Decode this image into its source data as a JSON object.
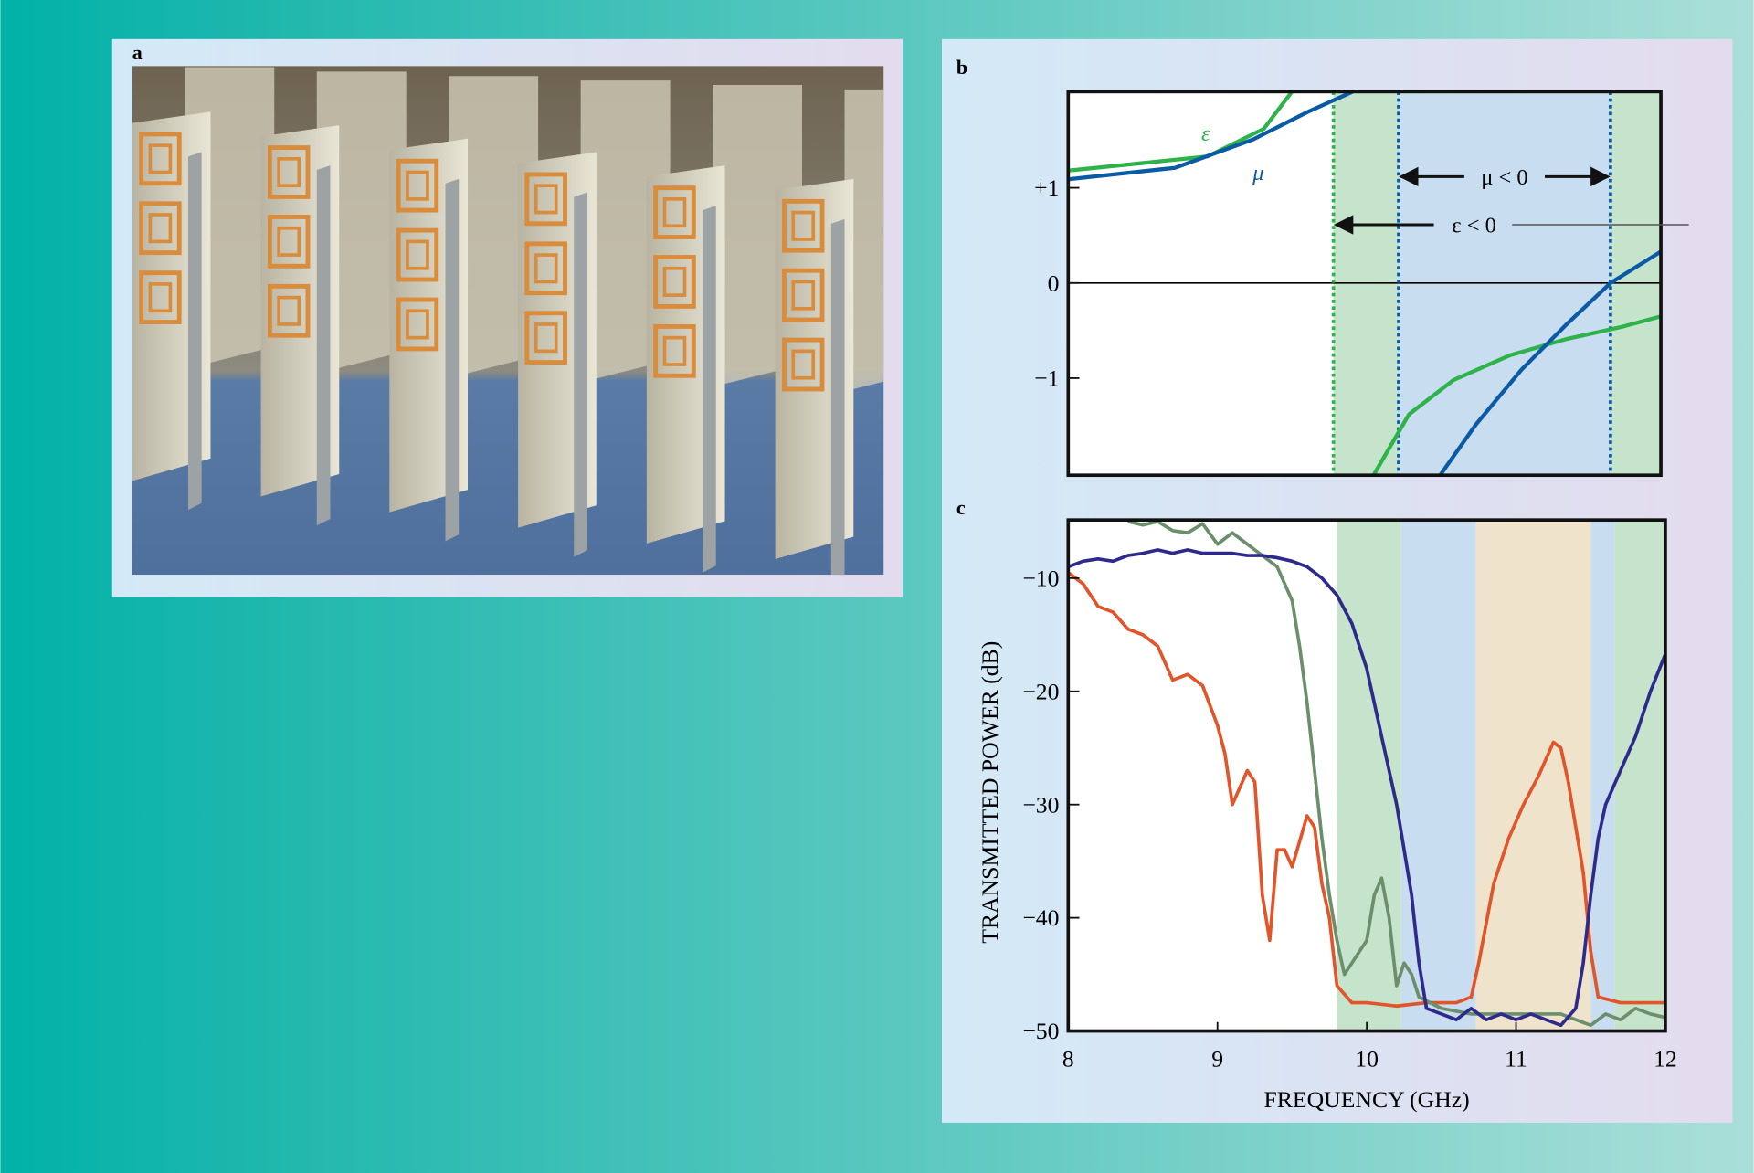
{
  "photo": {
    "label": "a"
  },
  "chart_data": [
    {
      "type": "line",
      "label": "b",
      "xlim": [
        8,
        12
      ],
      "ylim": [
        -2.02,
        2.01
      ],
      "yticks": [
        {
          "value": 1,
          "label": "+1"
        },
        0,
        {
          "value": -1,
          "label": "−1"
        }
      ],
      "hlines": [
        0
      ],
      "regions": [
        {
          "x": [
            9.79,
            12
          ],
          "color": "#c6e4cc"
        },
        {
          "x": [
            10.23,
            11.66
          ],
          "color": "#c8ddef"
        }
      ],
      "vlines": [
        {
          "x": 9.79,
          "color": "#2db34a"
        },
        {
          "x": 10.23,
          "color": "#0b5aa6"
        },
        {
          "x": 11.66,
          "color": "#0b5aa6"
        }
      ],
      "annotations": [
        "μ < 0",
        "ε < 0"
      ],
      "series": [
        {
          "name": "ε",
          "color": "#2db34a",
          "x": [
            8.0,
            8.94,
            9.32,
            9.51,
            null,
            10.06,
            10.3,
            10.6,
            10.98,
            11.36,
            11.74,
            12.0
          ],
          "values": [
            1.18,
            1.33,
            1.62,
            2.01,
            null,
            -2.02,
            -1.38,
            -1.02,
            -0.76,
            -0.59,
            -0.46,
            -0.35
          ]
        },
        {
          "name": "μ",
          "color": "#0b5aa6",
          "x": [
            8.0,
            8.72,
            9.25,
            9.62,
            9.92,
            null,
            10.51,
            10.75,
            11.06,
            11.36,
            11.66,
            12.0
          ],
          "values": [
            1.09,
            1.21,
            1.51,
            1.8,
            2.01,
            null,
            -2.02,
            -1.49,
            -0.91,
            -0.44,
            0,
            0.33
          ]
        }
      ]
    },
    {
      "type": "line",
      "label": "c",
      "xlabel": "FREQUENCY (GHz)",
      "ylabel": "TRANSMITTED POWER (dB)",
      "xlim": [
        8,
        12
      ],
      "ylim": [
        -50,
        -4.86
      ],
      "xticks": [
        8,
        9,
        10,
        11,
        12
      ],
      "yticks": [
        {
          "value": -10,
          "label": "−10"
        },
        {
          "value": -20,
          "label": "−20"
        },
        {
          "value": -30,
          "label": "−30"
        },
        {
          "value": -40,
          "label": "−40"
        },
        {
          "value": -50,
          "label": "−50"
        }
      ],
      "regions": [
        {
          "x": [
            9.8,
            10.23
          ],
          "color": "#c6e4cc"
        },
        {
          "x": [
            10.23,
            10.73
          ],
          "color": "#c8ddef"
        },
        {
          "x": [
            10.73,
            11.5
          ],
          "color": "#efe3cc"
        },
        {
          "x": [
            11.5,
            11.66
          ],
          "color": "#c8ddef"
        },
        {
          "x": [
            11.66,
            12
          ],
          "color": "#c6e4cc"
        }
      ],
      "series": [
        {
          "color": "#e0552a",
          "x": [
            8.0,
            8.1,
            8.2,
            8.3,
            8.4,
            8.5,
            8.6,
            8.7,
            8.8,
            8.9,
            9.0,
            9.05,
            9.1,
            9.2,
            9.25,
            9.3,
            9.35,
            9.4,
            9.45,
            9.5,
            9.6,
            9.65,
            9.7,
            9.75,
            9.8,
            9.9,
            10.0,
            10.2,
            10.4,
            10.6,
            10.7,
            10.75,
            10.85,
            10.95,
            11.05,
            11.15,
            11.2,
            11.25,
            11.3,
            11.35,
            11.45,
            11.5,
            11.55,
            11.7,
            11.9,
            12.0
          ],
          "values": [
            -9.5,
            -10.5,
            -12.5,
            -13,
            -14.5,
            -15,
            -16,
            -19,
            -18.5,
            -19.5,
            -23,
            -25.5,
            -30,
            -27,
            -28,
            -38,
            -42,
            -34,
            -34,
            -35.5,
            -31,
            -32,
            -37,
            -40,
            -46,
            -47.5,
            -47.5,
            -47.8,
            -47.5,
            -47.5,
            -47,
            -44,
            -37,
            -33,
            -30,
            -27.5,
            -26,
            -24.5,
            -25,
            -28,
            -36,
            -43,
            -47,
            -47.5,
            -47.5,
            -47.5
          ]
        },
        {
          "color": "#6b8f6b",
          "x": [
            8.4,
            8.5,
            8.6,
            8.7,
            8.8,
            8.9,
            9.0,
            9.1,
            9.2,
            9.3,
            9.4,
            9.5,
            9.55,
            9.6,
            9.65,
            9.7,
            9.75,
            9.8,
            9.85,
            9.9,
            9.95,
            10.0,
            10.05,
            10.1,
            10.15,
            10.2,
            10.25,
            10.3,
            10.35,
            10.5,
            10.7,
            11.0,
            11.3,
            11.4,
            11.5,
            11.6,
            11.7,
            11.8,
            11.9,
            12.0
          ],
          "values": [
            -5,
            -5.3,
            -5,
            -5.8,
            -6,
            -5.2,
            -7,
            -6,
            -7,
            -8,
            -9,
            -12,
            -16,
            -21,
            -27,
            -33,
            -38,
            -42,
            -45,
            -44,
            -43,
            -42,
            -38,
            -36.5,
            -40,
            -46,
            -44,
            -45,
            -47,
            -48,
            -48.5,
            -48.5,
            -48.5,
            -49,
            -49.5,
            -48.5,
            -49,
            -48,
            -48.5,
            -48.8
          ]
        },
        {
          "color": "#2e2a8c",
          "x": [
            8.0,
            8.1,
            8.2,
            8.3,
            8.4,
            8.5,
            8.6,
            8.7,
            8.8,
            8.9,
            9.0,
            9.1,
            9.2,
            9.3,
            9.4,
            9.5,
            9.6,
            9.7,
            9.8,
            9.9,
            10.0,
            10.1,
            10.2,
            10.3,
            10.35,
            10.4,
            10.5,
            10.6,
            10.7,
            10.8,
            10.9,
            11.0,
            11.1,
            11.2,
            11.3,
            11.4,
            11.45,
            11.5,
            11.55,
            11.6,
            11.7,
            11.8,
            11.9,
            12.0
          ],
          "values": [
            -9,
            -8.5,
            -8.3,
            -8.5,
            -8,
            -7.8,
            -7.5,
            -7.8,
            -7.5,
            -7.8,
            -7.8,
            -7.8,
            -8,
            -8,
            -8.2,
            -8.5,
            -9,
            -10,
            -11.5,
            -14,
            -18,
            -24,
            -30,
            -38,
            -44,
            -48,
            -48.5,
            -49,
            -48,
            -49,
            -48.5,
            -49,
            -48.5,
            -49,
            -49.5,
            -48,
            -44,
            -38,
            -33,
            -30,
            -27,
            -24,
            -20,
            -16.7
          ]
        }
      ]
    }
  ]
}
